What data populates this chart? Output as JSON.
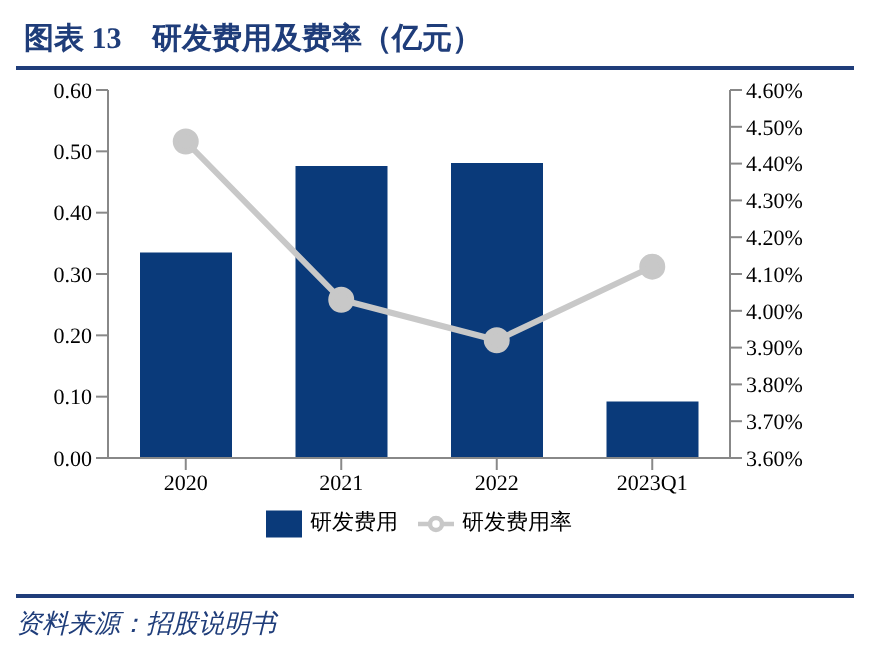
{
  "chart_data": {
    "type": "bar",
    "title": "图表 13　研发费用及费率（亿元）",
    "categories": [
      "2020",
      "2021",
      "2022",
      "2023Q1"
    ],
    "series": [
      {
        "name": "研发费用",
        "color": "#0a3a7a",
        "values": [
          0.335,
          0.476,
          0.481,
          0.092
        ]
      },
      {
        "name": "研发费用率",
        "type": "line",
        "axis": "y2",
        "color": "#c8c8c8",
        "marker": "circle",
        "values": [
          4.46,
          4.03,
          3.92,
          4.12
        ]
      }
    ],
    "ylim": [
      0,
      0.6
    ],
    "yticks": [
      {
        "value": 0,
        "label": "0.00"
      },
      {
        "value": 0.1,
        "label": "0.10"
      },
      {
        "value": 0.2,
        "label": "0.20"
      },
      {
        "value": 0.3,
        "label": "0.30"
      },
      {
        "value": 0.4,
        "label": "0.40"
      },
      {
        "value": 0.5,
        "label": "0.50"
      },
      {
        "value": 0.6,
        "label": "0.60"
      }
    ],
    "y2lim": [
      3.6,
      4.6
    ],
    "y2ticks": [
      {
        "value": 3.6,
        "label": "3.60%"
      },
      {
        "value": 3.7,
        "label": "3.70%"
      },
      {
        "value": 3.8,
        "label": "3.80%"
      },
      {
        "value": 3.9,
        "label": "3.90%"
      },
      {
        "value": 4.0,
        "label": "4.00%"
      },
      {
        "value": 4.1,
        "label": "4.10%"
      },
      {
        "value": 4.2,
        "label": "4.20%"
      },
      {
        "value": 4.3,
        "label": "4.30%"
      },
      {
        "value": 4.4,
        "label": "4.40%"
      },
      {
        "value": 4.5,
        "label": "4.50%"
      },
      {
        "value": 4.6,
        "label": "4.60%"
      }
    ],
    "grid": false,
    "legend": "bottom",
    "annotations": [
      "资料来源：招股说明书"
    ]
  }
}
